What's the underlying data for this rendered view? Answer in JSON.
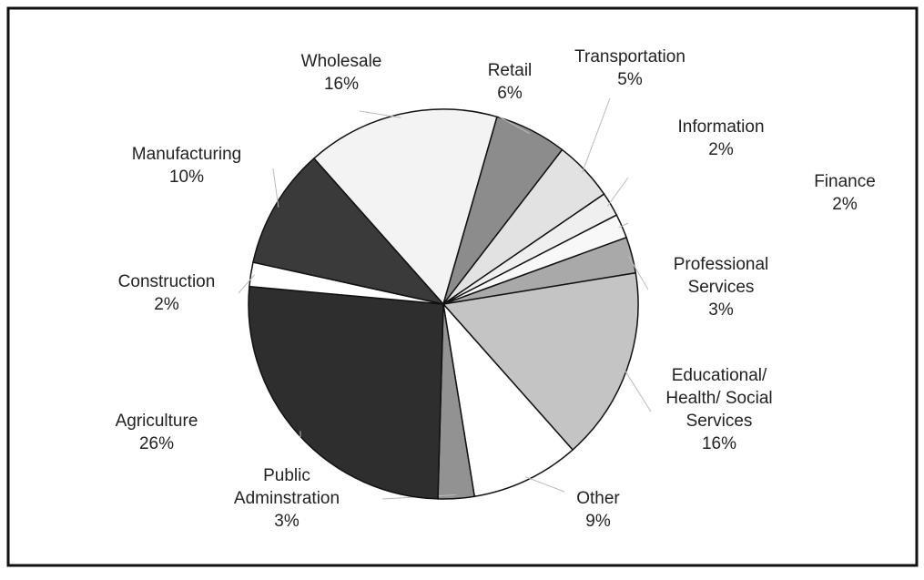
{
  "chart_data": {
    "type": "pie",
    "categories": [
      "Wholesale",
      "Retail",
      "Transportation",
      "Information",
      "Finance",
      "Professional Services",
      "Educational/ Health/ Social Services",
      "Other",
      "Public Adminstration",
      "Agriculture",
      "Construction",
      "Manufacturing"
    ],
    "values": [
      16,
      6,
      5,
      2,
      2,
      3,
      16,
      9,
      3,
      26,
      2,
      10
    ],
    "value_labels": [
      "16%",
      "6%",
      "5%",
      "2%",
      "2%",
      "3%",
      "16%",
      "9%",
      "3%",
      "26%",
      "2%",
      "10%"
    ],
    "colors": [
      "#f3f3f3",
      "#8c8c8c",
      "#e2e2e2",
      "#efefef",
      "#f8f8f8",
      "#a9a9a9",
      "#c4c4c4",
      "#ffffff",
      "#929292",
      "#2e2e2e",
      "#ffffff",
      "#3a3a3a"
    ]
  }
}
